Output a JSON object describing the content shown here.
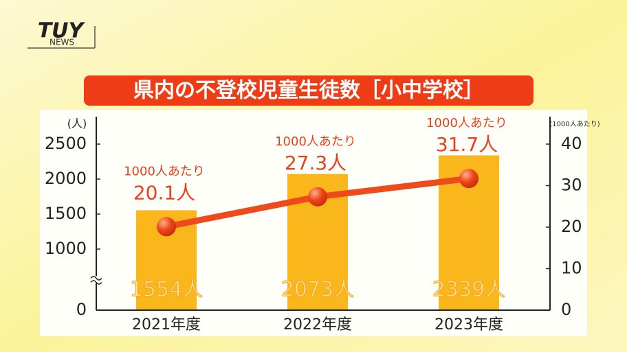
{
  "logo": {
    "brand": "TUY",
    "sub": "NEWS"
  },
  "chart_data": {
    "type": "combo",
    "title": "県内の不登校児童生徒数［小中学校］",
    "y_label": "(人)",
    "y2_label": "(1000人あたり)",
    "point_note": "1000人あたり",
    "categories": [
      "2021年度",
      "2022年度",
      "2023年度"
    ],
    "axis_break": true,
    "ylim": [
      0,
      2500
    ],
    "yticks": [
      0,
      1000,
      1500,
      2000,
      2500
    ],
    "y2lim": [
      0,
      40
    ],
    "y2ticks": [
      0,
      10,
      20,
      30,
      40
    ],
    "series": [
      {
        "type": "bar",
        "color": "#f9b71b",
        "values": [
          1554,
          2073,
          2339
        ],
        "value_labels": [
          "1554人",
          "2073人",
          "2339人"
        ]
      },
      {
        "type": "line",
        "axis": "y2",
        "color": "#ee4a1c",
        "values": [
          20.1,
          27.3,
          31.7
        ],
        "value_labels": [
          "20.1人",
          "27.3人",
          "31.7人"
        ]
      }
    ]
  }
}
